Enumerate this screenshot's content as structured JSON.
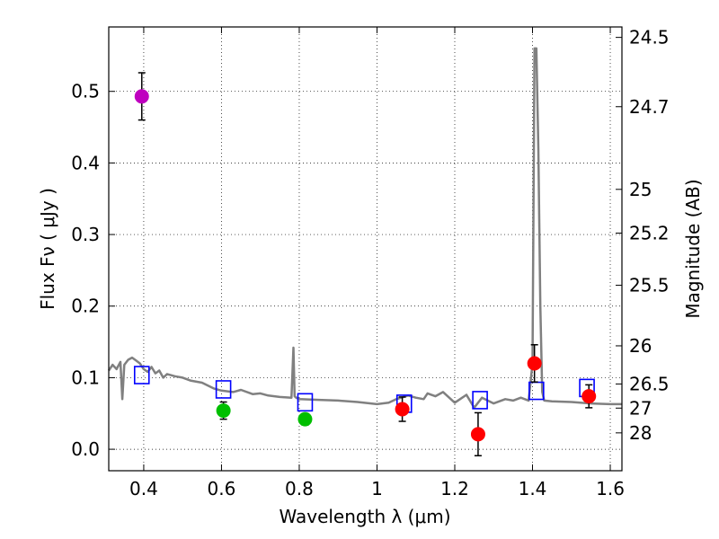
{
  "chart_data": {
    "type": "scatter",
    "xlabel": "Wavelength  λ (μm)",
    "ylabel": "Flux  Fν  ( μJy )",
    "y2label": "Magnitude (AB)",
    "xlim": [
      0.31,
      1.63
    ],
    "ylim": [
      -0.03,
      0.59
    ],
    "xticks": [
      0.4,
      0.6,
      0.8,
      1.0,
      1.2,
      1.4,
      1.6
    ],
    "xtick_labels": [
      "0.4",
      "0.6",
      "0.8",
      "1",
      "1.2",
      "1.4",
      "1.6"
    ],
    "yticks": [
      0.0,
      0.1,
      0.2,
      0.3,
      0.4,
      0.5
    ],
    "ytick_labels": [
      "0.0",
      "0.1",
      "0.2",
      "0.3",
      "0.4",
      "0.5"
    ],
    "y2ticks": [
      {
        "label": "24.5",
        "flux": 0.5754
      },
      {
        "label": "24.7",
        "flux": 0.4786
      },
      {
        "label": "25",
        "flux": 0.3631
      },
      {
        "label": "25.2",
        "flux": 0.302
      },
      {
        "label": "25.5",
        "flux": 0.2291
      },
      {
        "label": "26",
        "flux": 0.1445
      },
      {
        "label": "26.5",
        "flux": 0.0912
      },
      {
        "label": "27",
        "flux": 0.0575
      },
      {
        "label": "28",
        "flux": 0.0229
      }
    ],
    "grid": true,
    "colors": {
      "purple": "#bf00bf",
      "green": "#00bf00",
      "red": "#ff0000",
      "model_box": "#0000ff",
      "spectrum": "#808080"
    },
    "observed": [
      {
        "x": 0.395,
        "y": 0.493,
        "err": 0.033,
        "color": "purple"
      },
      {
        "x": 0.605,
        "y": 0.054,
        "err": 0.012,
        "color": "green"
      },
      {
        "x": 0.815,
        "y": 0.042,
        "err": 0.008,
        "color": "green"
      },
      {
        "x": 1.065,
        "y": 0.056,
        "err": 0.017,
        "color": "red"
      },
      {
        "x": 1.26,
        "y": 0.021,
        "err": 0.03,
        "color": "red"
      },
      {
        "x": 1.405,
        "y": 0.12,
        "err": 0.026,
        "color": "red"
      },
      {
        "x": 1.545,
        "y": 0.074,
        "err": 0.016,
        "color": "red"
      }
    ],
    "model_photometry": [
      {
        "x": 0.395,
        "y": 0.103
      },
      {
        "x": 0.605,
        "y": 0.083
      },
      {
        "x": 0.815,
        "y": 0.065
      },
      {
        "x": 1.07,
        "y": 0.063
      },
      {
        "x": 1.265,
        "y": 0.068
      },
      {
        "x": 1.41,
        "y": 0.081
      },
      {
        "x": 1.54,
        "y": 0.085
      }
    ],
    "model_spectrum": {
      "x": [
        0.31,
        0.32,
        0.33,
        0.34,
        0.345,
        0.35,
        0.36,
        0.37,
        0.38,
        0.39,
        0.4,
        0.41,
        0.42,
        0.43,
        0.44,
        0.45,
        0.46,
        0.48,
        0.5,
        0.52,
        0.55,
        0.58,
        0.6,
        0.63,
        0.65,
        0.68,
        0.7,
        0.72,
        0.75,
        0.78,
        0.785,
        0.788,
        0.792,
        0.8,
        0.85,
        0.9,
        0.95,
        1.0,
        1.03,
        1.05,
        1.08,
        1.1,
        1.12,
        1.13,
        1.15,
        1.17,
        1.2,
        1.23,
        1.25,
        1.27,
        1.3,
        1.33,
        1.35,
        1.37,
        1.39,
        1.4,
        1.405,
        1.41,
        1.415,
        1.42,
        1.425,
        1.43,
        1.45,
        1.5,
        1.55,
        1.6,
        1.63
      ],
      "y": [
        0.11,
        0.118,
        0.112,
        0.122,
        0.07,
        0.118,
        0.125,
        0.128,
        0.124,
        0.12,
        0.112,
        0.108,
        0.115,
        0.106,
        0.11,
        0.1,
        0.105,
        0.102,
        0.1,
        0.096,
        0.093,
        0.085,
        0.082,
        0.08,
        0.083,
        0.077,
        0.078,
        0.075,
        0.073,
        0.072,
        0.142,
        0.074,
        0.072,
        0.07,
        0.069,
        0.068,
        0.066,
        0.063,
        0.065,
        0.07,
        0.075,
        0.072,
        0.07,
        0.078,
        0.074,
        0.08,
        0.065,
        0.076,
        0.058,
        0.072,
        0.064,
        0.07,
        0.068,
        0.072,
        0.068,
        0.12,
        0.56,
        0.56,
        0.42,
        0.2,
        0.08,
        0.068,
        0.067,
        0.066,
        0.064,
        0.063,
        0.063
      ]
    }
  }
}
